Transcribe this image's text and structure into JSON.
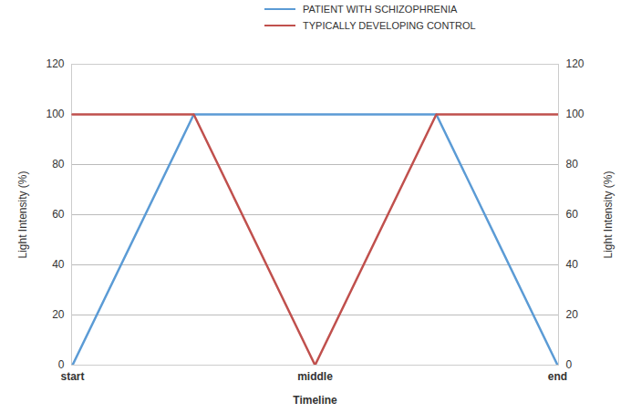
{
  "chart_data": {
    "type": "line",
    "categories": [
      "start",
      null,
      "middle",
      null,
      "end"
    ],
    "series": [
      {
        "name": "PATIENT WITH SCHIZOPHRENIA",
        "color": "#5b9bd5",
        "values": [
          0,
          100,
          100,
          100,
          0
        ]
      },
      {
        "name": "TYPICALLY DEVELOPING CONTROL",
        "color": "#c0504d",
        "values": [
          100,
          100,
          0,
          100,
          100
        ]
      }
    ],
    "x_label": "Timeline",
    "y_label": "Light Intensity (%)",
    "y2_label": "Light Intensity (%)",
    "ylim": [
      0,
      120
    ],
    "yticks": [
      0,
      20,
      40,
      60,
      80,
      100,
      120
    ],
    "y2lim": [
      0,
      120
    ],
    "y2ticks": [
      0,
      20,
      40,
      60,
      80,
      100,
      120
    ],
    "grid": true,
    "legend": "top"
  }
}
